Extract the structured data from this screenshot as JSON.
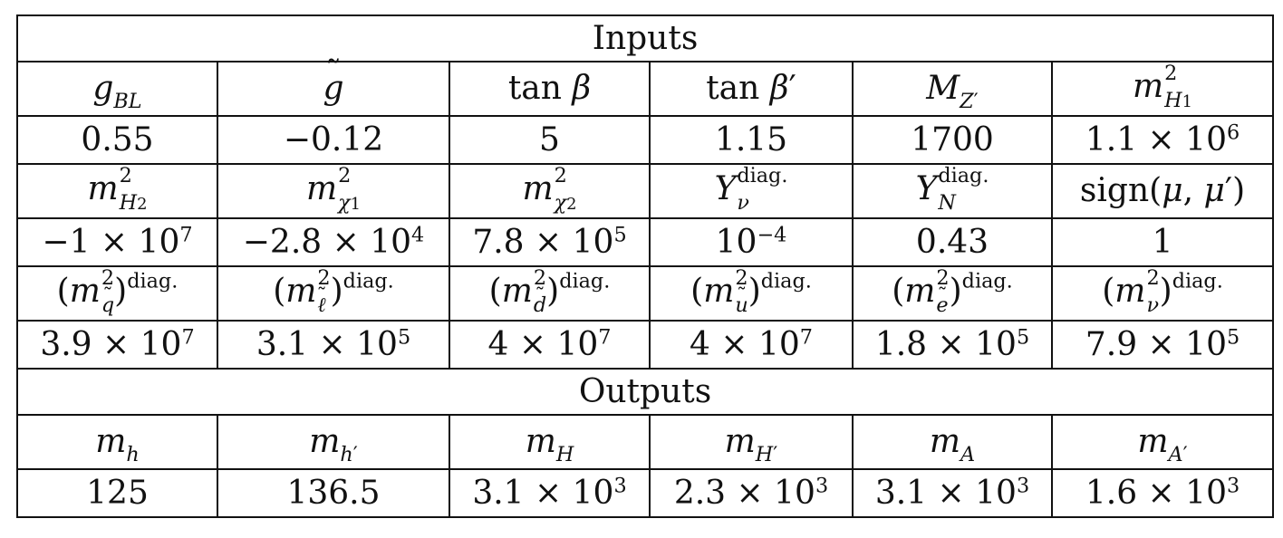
{
  "table": {
    "inputs_title": "Inputs",
    "outputs_title": "Outputs",
    "row1_headers": [
      "g_BL",
      "g̃",
      "tan β",
      "tan β′",
      "M_Z′",
      "m²_H1"
    ],
    "row1_values": [
      "0.55",
      "−0.12",
      "5",
      "1.15",
      "1700",
      "1.1 × 10⁶"
    ],
    "row2_headers": [
      "m²_H2",
      "m²_χ1",
      "m²_χ2",
      "Y_ν^diag.",
      "Y_N^diag.",
      "sign(μ, μ′)"
    ],
    "row2_values": [
      "−1 × 10⁷",
      "−2.8 × 10⁴",
      "7.8 × 10⁵",
      "10⁻⁴",
      "0.43",
      "1"
    ],
    "row3_headers": [
      "(m²_q̃)^diag.",
      "(m²_ℓ̃)^diag.",
      "(m²_d̃)^diag.",
      "(m²_ũ)^diag.",
      "(m²_ẽ)^diag.",
      "(m²_ν)^diag."
    ],
    "row3_values": [
      "3.9 × 10⁷",
      "3.1 × 10⁵",
      "4 × 10⁷",
      "4 × 10⁷",
      "1.8 × 10⁵",
      "7.9 × 10⁵"
    ],
    "out_headers": [
      "m_h",
      "m_h′",
      "m_H",
      "m_H′",
      "m_A",
      "m_A′"
    ],
    "out_values": [
      "125",
      "136.5",
      "3.1 × 10³",
      "2.3 × 10³",
      "3.1 × 10³",
      "1.6 × 10³"
    ]
  },
  "math": {
    "times": "×",
    "minus": "−",
    "prime": "′",
    "diag": "diag.",
    "sq": "2",
    "tan": "tan",
    "sign_fn": "sign",
    "ten": "10"
  }
}
